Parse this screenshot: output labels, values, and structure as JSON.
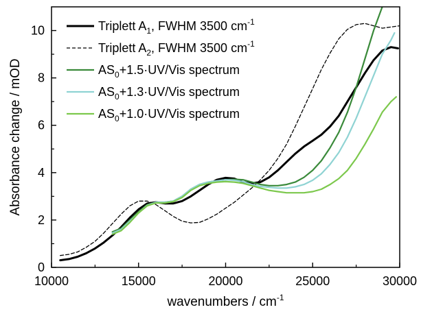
{
  "chart_data": {
    "type": "line",
    "title": "",
    "xlabel": "wavenumbers / cm",
    "xlabel_sup": "-1",
    "ylabel": "Absorbance change / mOD",
    "xlim": [
      10000,
      30000
    ],
    "ylim": [
      0,
      11
    ],
    "xticks": [
      10000,
      15000,
      20000,
      25000,
      30000
    ],
    "yticks": [
      0,
      2,
      4,
      6,
      8,
      10
    ],
    "grid": false,
    "legend_position": "top-left",
    "series": [
      {
        "name": "Triplett A1, FWHM 3500 cm-1",
        "legend": {
          "pre": "Triplett A",
          "sub": "1",
          "mid": ", FWHM 3500 cm",
          "sup": "-1",
          "post": ""
        },
        "color": "#000000",
        "style": "solid",
        "x": [
          10500,
          11000,
          11500,
          12000,
          12500,
          13000,
          13500,
          14000,
          14500,
          15000,
          15500,
          16000,
          16500,
          17000,
          17500,
          18000,
          18500,
          19000,
          19500,
          20000,
          20500,
          21000,
          21500,
          22000,
          22500,
          23000,
          23500,
          24000,
          24500,
          25000,
          25500,
          26000,
          26500,
          27000,
          27500,
          28000,
          28500,
          29000,
          29500,
          29900
        ],
        "y": [
          0.3,
          0.35,
          0.45,
          0.6,
          0.8,
          1.05,
          1.35,
          1.7,
          2.1,
          2.45,
          2.7,
          2.75,
          2.7,
          2.7,
          2.8,
          3.0,
          3.25,
          3.5,
          3.7,
          3.78,
          3.75,
          3.6,
          3.55,
          3.6,
          3.8,
          4.1,
          4.45,
          4.8,
          5.1,
          5.35,
          5.6,
          5.95,
          6.4,
          7.0,
          7.6,
          8.2,
          8.75,
          9.15,
          9.3,
          9.25
        ]
      },
      {
        "name": "Triplett A2, FWHM 3500 cm-1",
        "legend": {
          "pre": "Triplett A",
          "sub": "2",
          "mid": ", FWHM 3500 cm",
          "sup": "-1",
          "post": ""
        },
        "color": "#000000",
        "style": "dashed",
        "x": [
          10500,
          11000,
          11500,
          12000,
          12500,
          13000,
          13500,
          14000,
          14500,
          15000,
          15500,
          16000,
          16500,
          17000,
          17500,
          18000,
          18500,
          19000,
          19500,
          20000,
          20500,
          21000,
          21500,
          22000,
          22500,
          23000,
          23500,
          24000,
          24500,
          25000,
          25500,
          26000,
          26500,
          27000,
          27500,
          28000,
          28500,
          29000,
          29500,
          30000
        ],
        "y": [
          0.5,
          0.55,
          0.65,
          0.85,
          1.1,
          1.45,
          1.85,
          2.25,
          2.6,
          2.8,
          2.8,
          2.65,
          2.4,
          2.15,
          1.95,
          1.88,
          1.9,
          2.05,
          2.25,
          2.5,
          2.75,
          3.05,
          3.35,
          3.7,
          4.1,
          4.6,
          5.2,
          5.95,
          6.75,
          7.55,
          8.35,
          9.05,
          9.65,
          10.05,
          10.25,
          10.3,
          10.2,
          10.1,
          10.15,
          10.2
        ]
      },
      {
        "name": "AS0+1.5·UV/Vis spectrum",
        "legend": {
          "pre": "AS",
          "sub": "0",
          "mid": "+1.5·UV/Vis spectrum",
          "sup": "",
          "post": ""
        },
        "color": "#3a8a3a",
        "style": "solid",
        "x": [
          13500,
          14000,
          14500,
          15000,
          15500,
          16000,
          16500,
          17000,
          17500,
          18000,
          18500,
          19000,
          19500,
          20000,
          20500,
          21000,
          21500,
          22000,
          22500,
          23000,
          23500,
          24000,
          24500,
          25000,
          25500,
          26000,
          26500,
          27000,
          27500,
          28000,
          28500,
          29000
        ],
        "y": [
          1.5,
          1.65,
          2.0,
          2.35,
          2.65,
          2.75,
          2.75,
          2.8,
          3.0,
          3.3,
          3.5,
          3.6,
          3.65,
          3.7,
          3.72,
          3.7,
          3.6,
          3.5,
          3.45,
          3.45,
          3.5,
          3.6,
          3.8,
          4.1,
          4.5,
          5.05,
          5.7,
          6.55,
          7.6,
          8.8,
          10.0,
          11.0
        ]
      },
      {
        "name": "AS0+1.3·UV/Vis spectrum",
        "legend": {
          "pre": "AS",
          "sub": "0",
          "mid": "+1.3·UV/Vis spectrum",
          "sup": "",
          "post": ""
        },
        "color": "#8fd3d3",
        "style": "solid",
        "x": [
          13500,
          14000,
          14500,
          15000,
          15500,
          16000,
          16500,
          17000,
          17500,
          18000,
          18500,
          19000,
          19500,
          20000,
          20500,
          21000,
          21500,
          22000,
          22500,
          23000,
          23500,
          24000,
          24500,
          25000,
          25500,
          26000,
          26500,
          27000,
          27500,
          28000,
          28500,
          29000,
          29500,
          29700
        ],
        "y": [
          1.45,
          1.6,
          1.95,
          2.3,
          2.62,
          2.75,
          2.75,
          2.8,
          3.0,
          3.3,
          3.5,
          3.6,
          3.65,
          3.7,
          3.68,
          3.62,
          3.5,
          3.42,
          3.38,
          3.35,
          3.35,
          3.4,
          3.5,
          3.68,
          3.95,
          4.35,
          4.85,
          5.5,
          6.3,
          7.2,
          8.1,
          9.0,
          9.6,
          9.9
        ]
      },
      {
        "name": "AS0+1.0·UV/Vis spectrum",
        "legend": {
          "pre": "AS",
          "sub": "0",
          "mid": "+1.0·UV/Vis spectrum",
          "sup": "",
          "post": ""
        },
        "color": "#7cc84c",
        "style": "solid",
        "x": [
          13500,
          14000,
          14500,
          15000,
          15500,
          16000,
          16500,
          17000,
          17500,
          18000,
          18500,
          19000,
          19500,
          20000,
          20500,
          21000,
          21500,
          22000,
          22500,
          23000,
          23500,
          24000,
          24500,
          25000,
          25500,
          26000,
          26500,
          27000,
          27500,
          28000,
          28500,
          29000,
          29500,
          29800
        ],
        "y": [
          1.4,
          1.55,
          1.9,
          2.3,
          2.6,
          2.72,
          2.72,
          2.78,
          2.95,
          3.25,
          3.45,
          3.55,
          3.6,
          3.62,
          3.6,
          3.55,
          3.45,
          3.35,
          3.25,
          3.2,
          3.15,
          3.15,
          3.15,
          3.2,
          3.3,
          3.5,
          3.75,
          4.1,
          4.6,
          5.2,
          5.85,
          6.55,
          7.0,
          7.2
        ]
      }
    ]
  }
}
